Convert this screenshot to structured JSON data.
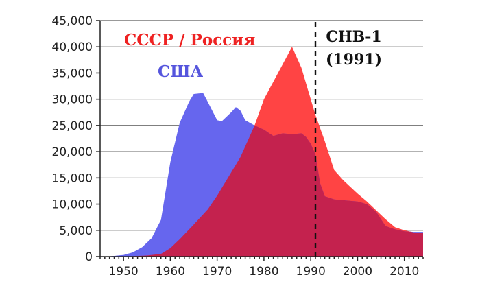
{
  "chart_data": {
    "type": "area",
    "title": "",
    "xlabel": "",
    "ylabel": "",
    "xlim": [
      1945,
      2014
    ],
    "ylim": [
      0,
      45000
    ],
    "grid": true,
    "x_ticks": [
      1950,
      1960,
      1970,
      1980,
      1990,
      2000,
      2010
    ],
    "x_tick_labels": [
      "1950",
      "1960",
      "1970",
      "1980",
      "1990",
      "2000",
      "2010"
    ],
    "y_ticks": [
      0,
      5000,
      10000,
      15000,
      20000,
      25000,
      30000,
      35000,
      40000,
      45000
    ],
    "y_tick_labels": [
      "0",
      "5,000",
      "10,000",
      "15,000",
      "20,000",
      "25,000",
      "30,000",
      "35,000",
      "40,000",
      "45,000"
    ],
    "series": [
      {
        "name": "США",
        "color": "#6666ee",
        "points": [
          [
            1945,
            0
          ],
          [
            1947,
            50
          ],
          [
            1950,
            300
          ],
          [
            1952,
            800
          ],
          [
            1954,
            1800
          ],
          [
            1956,
            3500
          ],
          [
            1958,
            7000
          ],
          [
            1960,
            18000
          ],
          [
            1962,
            25500
          ],
          [
            1964,
            29500
          ],
          [
            1965,
            31000
          ],
          [
            1967,
            31200
          ],
          [
            1968,
            29500
          ],
          [
            1970,
            26000
          ],
          [
            1971,
            25800
          ],
          [
            1973,
            27500
          ],
          [
            1974,
            28500
          ],
          [
            1975,
            27800
          ],
          [
            1976,
            26000
          ],
          [
            1978,
            25000
          ],
          [
            1980,
            24200
          ],
          [
            1982,
            23000
          ],
          [
            1984,
            23500
          ],
          [
            1986,
            23300
          ],
          [
            1988,
            23500
          ],
          [
            1989,
            22800
          ],
          [
            1990,
            21500
          ],
          [
            1991,
            19500
          ],
          [
            1992,
            14000
          ],
          [
            1993,
            11500
          ],
          [
            1995,
            10900
          ],
          [
            2000,
            10500
          ],
          [
            2002,
            10000
          ],
          [
            2004,
            8500
          ],
          [
            2006,
            5800
          ],
          [
            2008,
            5200
          ],
          [
            2010,
            4800
          ],
          [
            2012,
            4700
          ],
          [
            2014,
            4700
          ]
        ]
      },
      {
        "name": "СССР / Россия",
        "color": "#ff4444",
        "points": [
          [
            1945,
            0
          ],
          [
            1950,
            0
          ],
          [
            1955,
            200
          ],
          [
            1958,
            500
          ],
          [
            1960,
            1600
          ],
          [
            1962,
            3300
          ],
          [
            1965,
            6100
          ],
          [
            1968,
            9000
          ],
          [
            1970,
            11600
          ],
          [
            1975,
            19000
          ],
          [
            1978,
            25000
          ],
          [
            1980,
            30000
          ],
          [
            1983,
            35000
          ],
          [
            1986,
            40000
          ],
          [
            1988,
            36000
          ],
          [
            1990,
            30000
          ],
          [
            1991,
            27000
          ],
          [
            1993,
            22000
          ],
          [
            1995,
            16500
          ],
          [
            1997,
            14500
          ],
          [
            2000,
            12000
          ],
          [
            2002,
            10500
          ],
          [
            2004,
            8800
          ],
          [
            2006,
            7100
          ],
          [
            2008,
            5600
          ],
          [
            2010,
            5000
          ],
          [
            2012,
            4600
          ],
          [
            2014,
            4500
          ]
        ]
      }
    ],
    "overlap_color": "#c4224e",
    "series_labels": [
      "СССР / Россия",
      "США"
    ],
    "annotation": {
      "x": 1991,
      "label_line1": "СНВ-1",
      "label_line2": "(1991)"
    }
  }
}
